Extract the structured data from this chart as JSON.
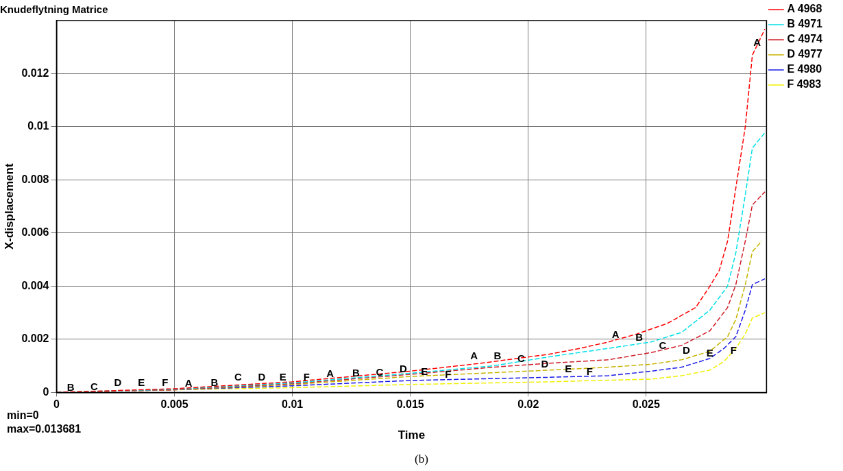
{
  "chart_data": {
    "type": "line",
    "title": "Knudeflytning Matrice",
    "xlabel": "Time",
    "ylabel": "X-displacement",
    "series": [
      {
        "name": "A 4968",
        "color": "#ff0000",
        "x": [
          0,
          0.005,
          0.01,
          0.015,
          0.018,
          0.0209,
          0.0222,
          0.0234,
          0.0246,
          0.0259,
          0.0271,
          0.0277,
          0.0281,
          0.02845,
          0.0288,
          0.0292,
          0.0295,
          0.03003
        ],
        "values": [
          0,
          0.00014,
          0.0004,
          0.0008,
          0.0011,
          0.00144,
          0.00166,
          0.0019,
          0.0022,
          0.0026,
          0.0032,
          0.004,
          0.0046,
          0.0057,
          0.0077,
          0.01,
          0.0127,
          0.01368
        ]
      },
      {
        "name": "B 4971",
        "color": "#00e0e8",
        "x": [
          0,
          0.005,
          0.01,
          0.015,
          0.0185,
          0.0209,
          0.0234,
          0.0252,
          0.0265,
          0.0277,
          0.02845,
          0.0288,
          0.0292,
          0.0295,
          0.03003
        ],
        "values": [
          0,
          0.00012,
          0.00036,
          0.00072,
          0.001,
          0.00134,
          0.00166,
          0.0019,
          0.00226,
          0.0031,
          0.004,
          0.00526,
          0.00744,
          0.0092,
          0.00978
        ]
      },
      {
        "name": "C 4974",
        "color": "#d0202a",
        "x": [
          0,
          0.005,
          0.01,
          0.015,
          0.0185,
          0.0209,
          0.0234,
          0.0252,
          0.0265,
          0.0277,
          0.02845,
          0.0288,
          0.0292,
          0.0295,
          0.03003
        ],
        "values": [
          0,
          0.0001,
          0.00033,
          0.00068,
          0.00095,
          0.0011,
          0.00123,
          0.0015,
          0.00177,
          0.00232,
          0.0032,
          0.00406,
          0.0057,
          0.00706,
          0.00755
        ]
      },
      {
        "name": "D 4977",
        "color": "#c8b400",
        "x": [
          0,
          0.005,
          0.01,
          0.015,
          0.0209,
          0.0234,
          0.0252,
          0.0265,
          0.0277,
          0.02845,
          0.0288,
          0.0292,
          0.0295,
          0.0299
        ],
        "values": [
          0,
          0.0001,
          0.0003,
          0.0006,
          0.00084,
          0.00095,
          0.00106,
          0.00123,
          0.00155,
          0.0021,
          0.00275,
          0.00406,
          0.0053,
          0.0057
        ]
      },
      {
        "name": "E 4980",
        "color": "#1a1ae8",
        "x": [
          0,
          0.005,
          0.01,
          0.015,
          0.0209,
          0.0234,
          0.0252,
          0.0265,
          0.0277,
          0.0283,
          0.0288,
          0.0292,
          0.0295,
          0.03003
        ],
        "values": [
          0,
          0.0001,
          0.00025,
          0.00045,
          0.00057,
          0.00063,
          0.0008,
          0.00095,
          0.00128,
          0.00166,
          0.0021,
          0.0031,
          0.00406,
          0.00428
        ]
      },
      {
        "name": "F 4983",
        "color": "#f0f000",
        "x": [
          0,
          0.005,
          0.01,
          0.015,
          0.0209,
          0.0234,
          0.0252,
          0.0265,
          0.0277,
          0.0283,
          0.0288,
          0.0292,
          0.0295,
          0.03003
        ],
        "values": [
          0,
          0.0001,
          0.00018,
          0.0003,
          0.0004,
          0.00046,
          0.0005,
          0.00063,
          0.00084,
          0.00117,
          0.00166,
          0.0022,
          0.0028,
          0.003
        ]
      }
    ],
    "xlim": [
      0,
      0.0301
    ],
    "xticks": [
      0,
      0.005,
      0.01,
      0.015,
      0.02,
      0.025
    ],
    "ylim": [
      0,
      0.014
    ],
    "yticks": [
      0,
      0.002,
      0.004,
      0.006,
      0.008,
      0.01,
      0.012
    ],
    "grid": true,
    "legend": "right",
    "line_style": "dashed",
    "marker": "none",
    "annotations": [
      "min=0",
      "max=0.013681",
      "(b)",
      {
        "text": "B",
        "x": 0.0006,
        "y": 2e-05
      },
      {
        "text": "C",
        "x": 0.0016,
        "y": 3e-05
      },
      {
        "text": "D",
        "x": 0.0026,
        "y": 0.0002
      },
      {
        "text": "E",
        "x": 0.0036,
        "y": 0.0002
      },
      {
        "text": "F",
        "x": 0.0046,
        "y": 0.0002
      },
      {
        "text": "A",
        "x": 0.0056,
        "y": 0.00017
      },
      {
        "text": "B",
        "x": 0.0067,
        "y": 0.0002
      },
      {
        "text": "C",
        "x": 0.0077,
        "y": 0.0004
      },
      {
        "text": "D",
        "x": 0.0087,
        "y": 0.0004
      },
      {
        "text": "E",
        "x": 0.0096,
        "y": 0.0004
      },
      {
        "text": "F",
        "x": 0.0106,
        "y": 0.0004
      },
      {
        "text": "A",
        "x": 0.0116,
        "y": 0.00053
      },
      {
        "text": "B",
        "x": 0.0127,
        "y": 0.00055
      },
      {
        "text": "C",
        "x": 0.0137,
        "y": 0.00059
      },
      {
        "text": "D",
        "x": 0.0147,
        "y": 0.0007
      },
      {
        "text": "E",
        "x": 0.0156,
        "y": 0.0006
      },
      {
        "text": "F",
        "x": 0.0166,
        "y": 0.0005
      },
      {
        "text": "A",
        "x": 0.0177,
        "y": 0.0012
      },
      {
        "text": "B",
        "x": 0.0187,
        "y": 0.0012
      },
      {
        "text": "C",
        "x": 0.0197,
        "y": 0.0011
      },
      {
        "text": "D",
        "x": 0.0207,
        "y": 0.0009
      },
      {
        "text": "E",
        "x": 0.0217,
        "y": 0.0007
      },
      {
        "text": "F",
        "x": 0.0226,
        "y": 0.0006
      },
      {
        "text": "A",
        "x": 0.0237,
        "y": 0.002
      },
      {
        "text": "B",
        "x": 0.0247,
        "y": 0.0019
      },
      {
        "text": "C",
        "x": 0.0257,
        "y": 0.0016
      },
      {
        "text": "D",
        "x": 0.0267,
        "y": 0.0014
      },
      {
        "text": "E",
        "x": 0.0277,
        "y": 0.0013
      },
      {
        "text": "F",
        "x": 0.0287,
        "y": 0.0014
      },
      {
        "text": "A",
        "x": 0.0297,
        "y": 0.013
      }
    ]
  }
}
